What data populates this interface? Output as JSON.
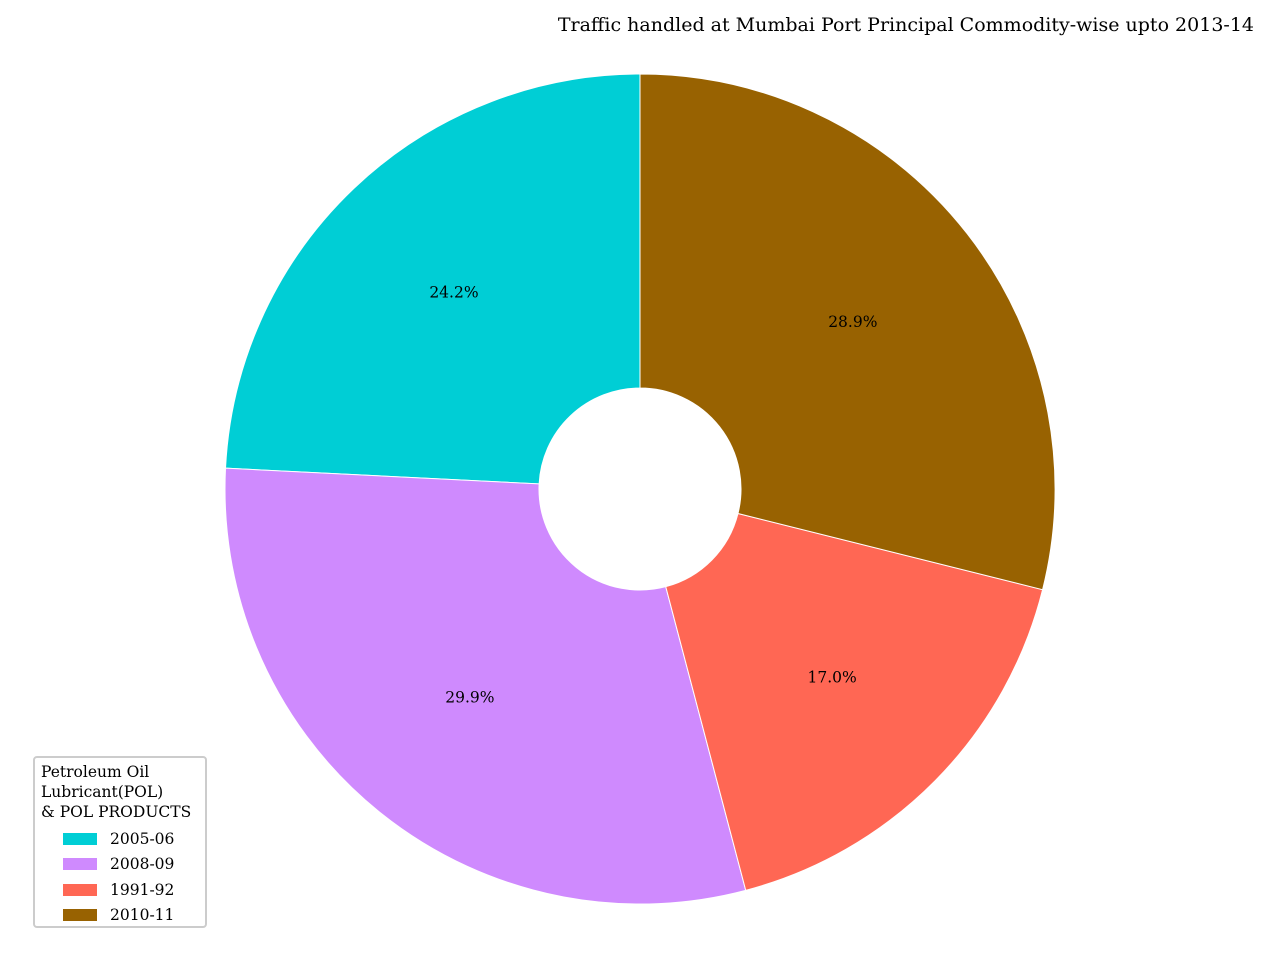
{
  "chart_data": {
    "type": "pie",
    "title": "Traffic handled at Mumbai Port Principal Commodity-wise upto 2013-14",
    "legend_title": "Petroleum Oil\nLubricant(POL)\n& POL PRODUCTS",
    "legend_placement": "lower-left",
    "donut": true,
    "start_angle_deg": 90,
    "direction": "counterclockwise",
    "slices": [
      {
        "label": "2005-06",
        "value": 24.2,
        "pct_label": "24.2%",
        "color": "#00CED5"
      },
      {
        "label": "2008-09",
        "value": 29.9,
        "pct_label": "29.9%",
        "color": "#CF8AFE"
      },
      {
        "label": "1991-92",
        "value": 17.0,
        "pct_label": "17.0%",
        "color": "#FF6754"
      },
      {
        "label": "2010-11",
        "value": 28.9,
        "pct_label": "28.9%",
        "color": "#986201"
      }
    ]
  }
}
